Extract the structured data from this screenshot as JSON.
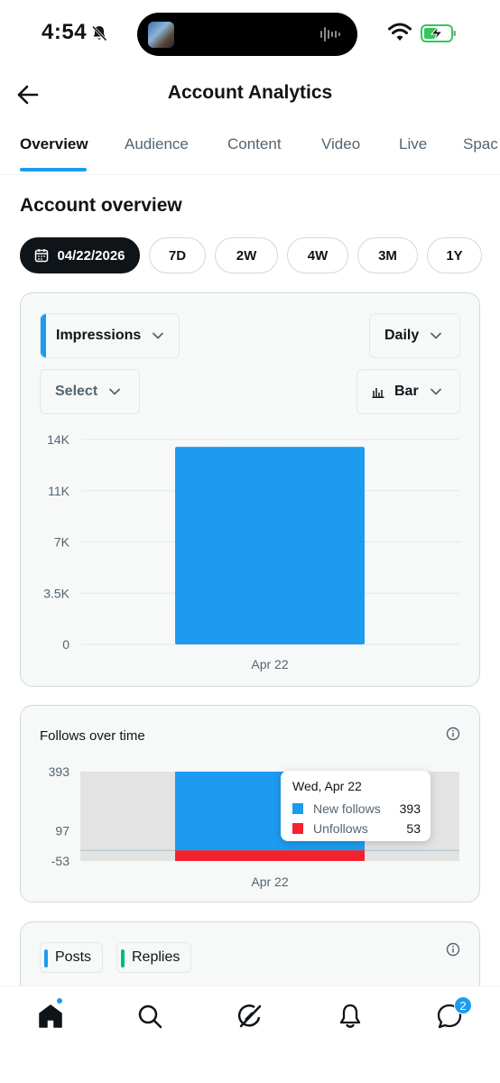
{
  "status_bar": {
    "time": "4:54"
  },
  "header": {
    "title": "Account Analytics"
  },
  "tabs": [
    {
      "label": "Overview",
      "active": true
    },
    {
      "label": "Audience"
    },
    {
      "label": "Content"
    },
    {
      "label": "Video"
    },
    {
      "label": "Live"
    },
    {
      "label": "Spac"
    }
  ],
  "section_title": "Account overview",
  "date_chips": [
    {
      "label": "04/22/2026",
      "selected": true
    },
    {
      "label": "7D"
    },
    {
      "label": "2W"
    },
    {
      "label": "4W"
    },
    {
      "label": "3M"
    },
    {
      "label": "1Y"
    }
  ],
  "overview_card": {
    "metric_dropdown": "Impressions",
    "interval_dropdown": "Daily",
    "compare_dropdown": "Select",
    "chart_type_dropdown": "Bar"
  },
  "follows_card": {
    "title": "Follows over time",
    "tooltip": {
      "date": "Wed, Apr 22",
      "rows": [
        {
          "label": "New follows",
          "value": "393"
        },
        {
          "label": "Unfollows",
          "value": "53"
        }
      ]
    }
  },
  "posts_card": {
    "legend": [
      "Posts",
      "Replies"
    ]
  },
  "bottom_nav": {
    "icons": [
      "home-icon",
      "search-icon",
      "grok-icon",
      "notifications-icon",
      "messages-icon"
    ],
    "messages_badge": "2"
  },
  "colors": {
    "accent": "#1d9bf0",
    "unfollow": "#f4212e",
    "replies": "#00ba7c"
  },
  "chart_data": [
    {
      "type": "bar",
      "categories": [
        "Apr 22"
      ],
      "values": [
        13500
      ],
      "y_ticks": [
        "0",
        "3.5K",
        "7K",
        "11K",
        "14K"
      ],
      "y_tick_values": [
        0,
        3500,
        7000,
        10500,
        14000
      ],
      "ylim": [
        0,
        14000
      ],
      "grid": true
    },
    {
      "type": "bar",
      "title": "Follows over time",
      "categories": [
        "Apr 22"
      ],
      "series": [
        {
          "name": "New follows",
          "values": [
            393
          ]
        },
        {
          "name": "Unfollows",
          "values": [
            -53
          ]
        }
      ],
      "y_ticks": [
        "-53",
        "97",
        "393"
      ],
      "y_tick_values": [
        -53,
        97,
        393
      ],
      "ylim": [
        -53,
        393
      ]
    }
  ]
}
